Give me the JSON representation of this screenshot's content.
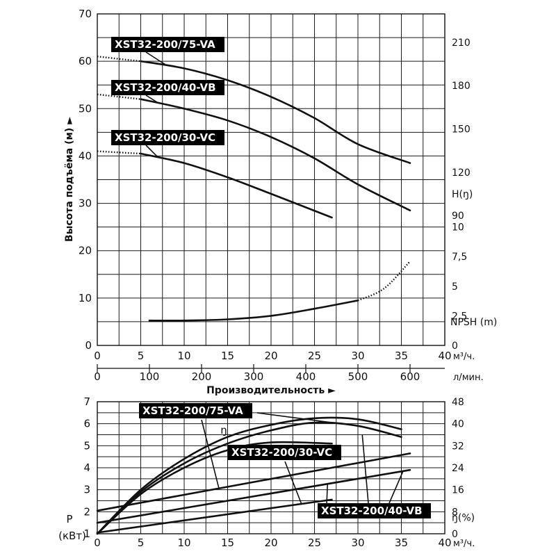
{
  "chart_data": [
    {
      "type": "line",
      "xlabel": "Производительность",
      "ylabel": "Высота подъёма (м)",
      "x_units": [
        "м³/ч.",
        "л/мин."
      ],
      "xlim": [
        0,
        40
      ],
      "ylim": [
        0,
        70
      ],
      "x_ticks": [
        "0",
        "5",
        "10",
        "15",
        "20",
        "25",
        "30",
        "35",
        "40"
      ],
      "x2_ticks": [
        "0",
        "100",
        "200",
        "300",
        "400",
        "500",
        "600"
      ],
      "y_ticks": [
        "0",
        "10",
        "20",
        "30",
        "40",
        "50",
        "60",
        "70"
      ],
      "right_axis_head_label": "H(ŋ)",
      "right_axis_head_ticks": [
        "90",
        "120",
        "150",
        "180",
        "210"
      ],
      "right_axis_npsh_label": "NPSH (m)",
      "right_axis_npsh_ticks": [
        "0",
        "2,5",
        "5",
        "7,5",
        "10"
      ],
      "npsh_axis_range": [
        0,
        10
      ],
      "grid": true,
      "series": [
        {
          "name": "XST32-200/75-VA",
          "x": [
            0,
            5,
            10,
            15,
            20,
            25,
            30,
            36
          ],
          "y": [
            61,
            60,
            58.5,
            56,
            52.5,
            48,
            42.5,
            38.5
          ]
        },
        {
          "name": "XST32-200/40-VB",
          "x": [
            0,
            5,
            10,
            15,
            20,
            25,
            30,
            36
          ],
          "y": [
            53,
            52,
            50,
            47.5,
            44,
            39.5,
            34,
            28.5
          ]
        },
        {
          "name": "XST32-200/30-VC",
          "x": [
            0,
            5,
            10,
            15,
            20,
            27
          ],
          "y": [
            41,
            40.5,
            38.5,
            35.5,
            32,
            27
          ]
        },
        {
          "name": "NPSH (m)",
          "x": [
            6,
            10,
            15,
            20,
            25,
            30,
            33,
            36
          ],
          "y": [
            2.1,
            2.1,
            2.2,
            2.5,
            3.1,
            3.8,
            4.8,
            7.1
          ]
        }
      ]
    },
    {
      "type": "line",
      "ylabel": "P (кВт)",
      "y2label": "ŋ(%)",
      "efficiency_label": "ŋ",
      "x_unit": "м³/ч.",
      "xlim": [
        0,
        40
      ],
      "ylim": [
        1,
        7
      ],
      "y2lim": [
        0,
        48
      ],
      "x_ticks": [
        "0",
        "5",
        "10",
        "15",
        "20",
        "25",
        "30",
        "35",
        "40"
      ],
      "y_ticks": [
        "1",
        "2",
        "3",
        "4",
        "5",
        "6",
        "7"
      ],
      "y2_ticks": [
        "0",
        "8",
        "16",
        "24",
        "32",
        "40",
        "48"
      ],
      "grid": true,
      "series": [
        {
          "name": "XST32-200/75-VA",
          "x": [
            0,
            5,
            10,
            15,
            20,
            25,
            30,
            35
          ],
          "y": [
            1.0,
            3.0,
            4.4,
            5.4,
            5.95,
            6.25,
            6.2,
            5.75
          ]
        },
        {
          "name": "XST32-200/40-VB",
          "x": [
            0,
            5,
            10,
            15,
            20,
            25,
            30,
            35
          ],
          "y": [
            1.0,
            2.9,
            4.2,
            5.1,
            5.7,
            6.05,
            5.9,
            5.4
          ]
        },
        {
          "name": "XST32-200/30-VC",
          "x": [
            0,
            5,
            10,
            15,
            20,
            27
          ],
          "y": [
            1.0,
            2.8,
            4.0,
            4.8,
            5.15,
            5.1
          ]
        },
        {
          "name": "XST32-200/75-VA",
          "x": [
            0,
            36
          ],
          "y": [
            2.05,
            4.65
          ]
        },
        {
          "name": "XST32-200/40-VB",
          "x": [
            0,
            36
          ],
          "y": [
            1.5,
            3.9
          ]
        },
        {
          "name": "XST32-200/30-VC",
          "x": [
            0,
            27
          ],
          "y": [
            1.05,
            2.55
          ]
        }
      ]
    }
  ]
}
